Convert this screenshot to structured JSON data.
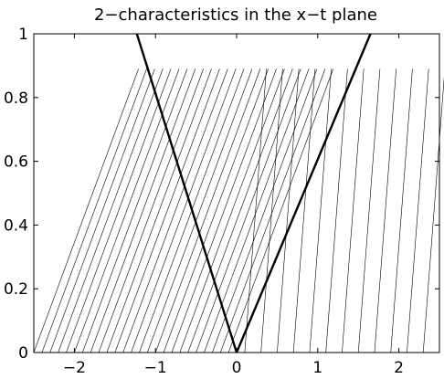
{
  "chart_data": {
    "type": "line",
    "title": "2−characteristics in the x−t plane",
    "xlabel": "",
    "ylabel": "",
    "xlim": [
      -2.5,
      2.5
    ],
    "ylim": [
      0,
      1
    ],
    "x_ticks": [
      {
        "value": -2,
        "label": "−2"
      },
      {
        "value": -1,
        "label": "−1"
      },
      {
        "value": 0,
        "label": "0"
      },
      {
        "value": 1,
        "label": "1"
      },
      {
        "value": 2,
        "label": "2"
      }
    ],
    "y_ticks": [
      {
        "value": 0,
        "label": "0"
      },
      {
        "value": 0.2,
        "label": "0.2"
      },
      {
        "value": 0.4,
        "label": "0.4"
      },
      {
        "value": 0.6,
        "label": "0.6"
      },
      {
        "value": 0.8,
        "label": "0.8"
      },
      {
        "value": 1,
        "label": "1"
      }
    ],
    "grid": false,
    "legend": "none",
    "line_color": "#000000",
    "characteristics": {
      "t_end": 0.89,
      "left_family": {
        "start_x": [
          -2.5,
          -2.4,
          -2.3,
          -2.2,
          -2.1,
          -2.0,
          -1.9,
          -1.8,
          -1.7,
          -1.6,
          -1.5,
          -1.4,
          -1.3,
          -1.2,
          -1.1,
          -1.0,
          -0.9,
          -0.8,
          -0.7,
          -0.6,
          -0.5,
          -0.4,
          -0.3,
          -0.2,
          -0.1
        ],
        "slope_dx_dt": 1.45
      },
      "right_family": {
        "start_x": [
          0.1,
          0.3,
          0.5,
          0.7,
          0.9,
          1.1,
          1.3,
          1.5,
          1.7,
          1.9,
          2.1,
          2.3
        ],
        "slope_dx_dt": 0.3
      }
    },
    "boundaries": [
      {
        "x": [
          0,
          -1.23
        ],
        "t": [
          0,
          1
        ],
        "bold": true
      },
      {
        "x": [
          0,
          1.65
        ],
        "t": [
          0,
          1
        ],
        "bold": true
      }
    ]
  }
}
